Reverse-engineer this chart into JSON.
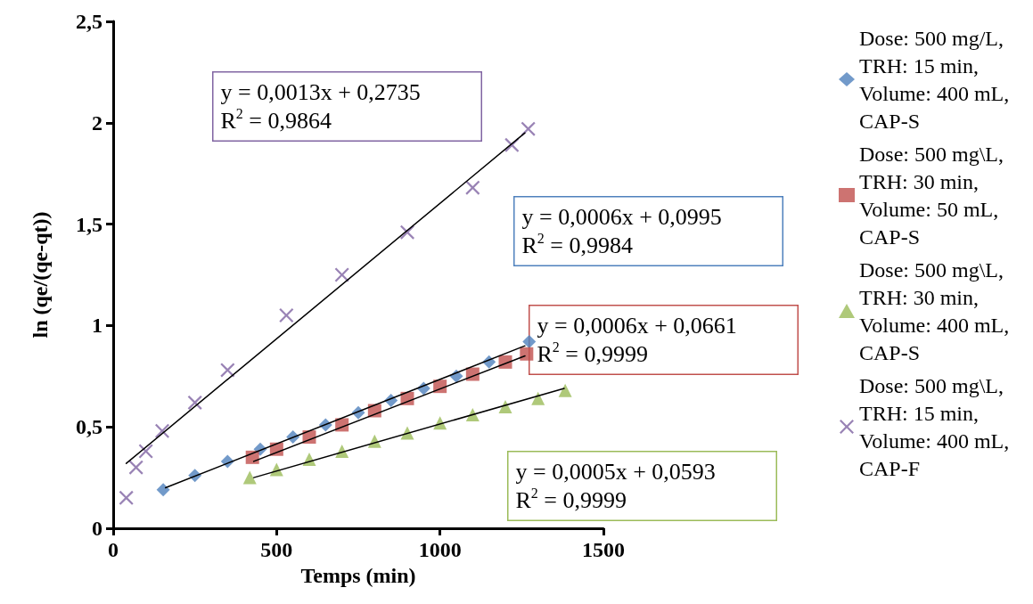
{
  "chart_data": {
    "type": "scatter",
    "xlabel": "Temps (min)",
    "ylabel": "ln (qe/(qe-qt))",
    "xlim": [
      0,
      1500
    ],
    "xticks": [
      0,
      500,
      1000,
      1500
    ],
    "ylim": [
      0,
      2.5
    ],
    "yticks": [
      0,
      {
        "value": 0.5,
        "label": "0,5"
      },
      1,
      {
        "value": 1.5,
        "label": "1,5"
      },
      2,
      {
        "value": 2.5,
        "label": "2,5"
      }
    ],
    "grid": false,
    "legend": "right",
    "series": [
      {
        "name": "Dose: 500 mg/L, TRH: 15 min, Volume: 400 mL, CAP-S",
        "color": "#4f81bd",
        "marker": "diamond",
        "x": [
          153,
          250,
          350,
          450,
          550,
          650,
          750,
          850,
          950,
          1050,
          1150,
          1273
        ],
        "values": [
          0.19,
          0.26,
          0.33,
          0.39,
          0.45,
          0.51,
          0.57,
          0.63,
          0.69,
          0.75,
          0.82,
          0.92
        ]
      },
      {
        "name": "Dose: 500 mg\\L, TRH: 30 min, Volume: 50 mL, CAP-S",
        "color": "#c0504d",
        "marker": "square",
        "x": [
          426,
          500,
          600,
          700,
          800,
          900,
          1000,
          1100,
          1200,
          1265
        ],
        "values": [
          0.35,
          0.39,
          0.45,
          0.51,
          0.58,
          0.64,
          0.7,
          0.76,
          0.82,
          0.86
        ]
      },
      {
        "name": "Dose: 500 mg\\L, TRH: 30 min, Volume: 400 mL, CAP-S",
        "color": "#9bbb59",
        "marker": "triangle",
        "x": [
          418,
          500,
          600,
          700,
          800,
          900,
          1000,
          1100,
          1200,
          1300,
          1383
        ],
        "values": [
          0.25,
          0.29,
          0.34,
          0.38,
          0.43,
          0.47,
          0.52,
          0.56,
          0.6,
          0.64,
          0.68
        ]
      },
      {
        "name": "Dose: 500 mg\\L, TRH: 15 min, Volume: 400 mL, CAP-F",
        "color": "#8064a2",
        "marker": "cross",
        "x": [
          40,
          70,
          100,
          150,
          250,
          350,
          530,
          700,
          900,
          1100,
          1220,
          1270
        ],
        "values": [
          0.15,
          0.3,
          0.38,
          0.48,
          0.62,
          0.78,
          1.05,
          1.25,
          1.46,
          1.68,
          1.89,
          1.97
        ]
      },
      {
        "type": "line",
        "color": "#000000",
        "marker": "none",
        "x": [
          160,
          1260
        ],
        "values": [
          0.2,
          0.9
        ]
      },
      {
        "type": "line",
        "color": "#000000",
        "marker": "none",
        "x": [
          430,
          1260
        ],
        "values": [
          0.33,
          0.85
        ]
      },
      {
        "type": "line",
        "color": "#000000",
        "marker": "none",
        "x": [
          430,
          1380
        ],
        "values": [
          0.25,
          0.69
        ]
      },
      {
        "type": "line",
        "color": "#000000",
        "marker": "none",
        "x": [
          40,
          1260
        ],
        "values": [
          0.32,
          1.95
        ]
      }
    ],
    "annotations": [
      "y = 0,0013x + 0,2735\nR$^{2}$ = 0,9864",
      "y = 0,0006x + 0,0995\nR$^{2}$ = 0,9984",
      "y = 0,0006x + 0,0661\nR$^{2}$ = 0,9999",
      "y = 0,0005x + 0,0593\nR$^{2}$ = 0,9999"
    ]
  }
}
